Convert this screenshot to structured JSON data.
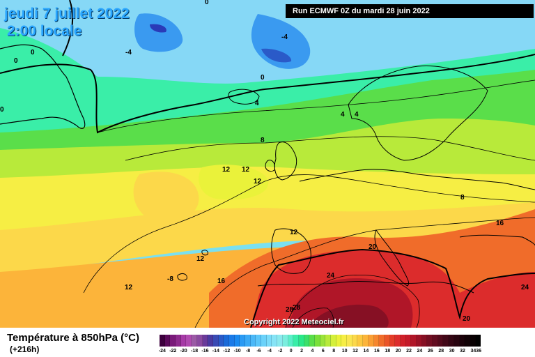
{
  "title": {
    "date": "jeudi 7 juillet 2022",
    "time": "2:00 locale"
  },
  "run_info": "Run ECMWF 0Z du mardi 28 juin 2022",
  "copyright": "Copyright 2022 Meteociel.fr",
  "legend": {
    "title": "Température à 850hPa (°C)",
    "subtitle": "(+216h)",
    "bins": [
      {
        "label": "-24",
        "color": "#3d003d"
      },
      {
        "label": "",
        "color": "#5a0a5a"
      },
      {
        "label": "-22",
        "color": "#7a1a7a"
      },
      {
        "label": "",
        "color": "#8e2a8e"
      },
      {
        "label": "-20",
        "color": "#a63aa6"
      },
      {
        "label": "",
        "color": "#b04ab0"
      },
      {
        "label": "-18",
        "color": "#9b5aa6"
      },
      {
        "label": "",
        "color": "#8a4aa0"
      },
      {
        "label": "-16",
        "color": "#6a3a9a"
      },
      {
        "label": "",
        "color": "#4a3aa0"
      },
      {
        "label": "-14",
        "color": "#3a4ab4"
      },
      {
        "label": "",
        "color": "#2a5ac8"
      },
      {
        "label": "-12",
        "color": "#1a6ad8"
      },
      {
        "label": "",
        "color": "#1a7ae8"
      },
      {
        "label": "-10",
        "color": "#1a8af0"
      },
      {
        "label": "",
        "color": "#2a9af4"
      },
      {
        "label": "-8",
        "color": "#3aaaf6"
      },
      {
        "label": "",
        "color": "#4ab8f8"
      },
      {
        "label": "-6",
        "color": "#5ac6fa"
      },
      {
        "label": "",
        "color": "#6ad2fa"
      },
      {
        "label": "-4",
        "color": "#7adcfa"
      },
      {
        "label": "",
        "color": "#86e4f6"
      },
      {
        "label": "-2",
        "color": "#8aeaee"
      },
      {
        "label": "",
        "color": "#7aeede"
      },
      {
        "label": "0",
        "color": "#5af0c8"
      },
      {
        "label": "",
        "color": "#3aeea8"
      },
      {
        "label": "2",
        "color": "#2ae888"
      },
      {
        "label": "",
        "color": "#3ae06a"
      },
      {
        "label": "4",
        "color": "#5ade4a"
      },
      {
        "label": "",
        "color": "#7ae03a"
      },
      {
        "label": "6",
        "color": "#9ae43a"
      },
      {
        "label": "",
        "color": "#b8ea3a"
      },
      {
        "label": "8",
        "color": "#d4f03a"
      },
      {
        "label": "",
        "color": "#eaf23a"
      },
      {
        "label": "10",
        "color": "#f6ee44"
      },
      {
        "label": "",
        "color": "#fae650"
      },
      {
        "label": "12",
        "color": "#fcd84a"
      },
      {
        "label": "",
        "color": "#fcc840"
      },
      {
        "label": "14",
        "color": "#fcb43a"
      },
      {
        "label": "",
        "color": "#fa9e34"
      },
      {
        "label": "16",
        "color": "#f6862e"
      },
      {
        "label": "",
        "color": "#f06c2a"
      },
      {
        "label": "18",
        "color": "#ea5428"
      },
      {
        "label": "",
        "color": "#e43c28"
      },
      {
        "label": "20",
        "color": "#dc2c2c"
      },
      {
        "label": "",
        "color": "#d0202a"
      },
      {
        "label": "22",
        "color": "#c41a2a"
      },
      {
        "label": "",
        "color": "#b01628"
      },
      {
        "label": "24",
        "color": "#9a1226"
      },
      {
        "label": "",
        "color": "#861024"
      },
      {
        "label": "26",
        "color": "#720e22"
      },
      {
        "label": "",
        "color": "#620c20"
      },
      {
        "label": "28",
        "color": "#520a1c"
      },
      {
        "label": "",
        "color": "#420818"
      },
      {
        "label": "30",
        "color": "#340614"
      },
      {
        "label": "",
        "color": "#280410"
      },
      {
        "label": "32",
        "color": "#1c020a"
      },
      {
        "label": "",
        "color": "#120206"
      },
      {
        "label": "34",
        "color": "#080002"
      },
      {
        "label": "36",
        "color": "#000000"
      }
    ]
  },
  "contour_labels": [
    "0",
    "0",
    "0",
    "0",
    "-4",
    "-4",
    "0",
    "4",
    "4",
    "4",
    "8",
    "12",
    "12",
    "12",
    "12",
    "12",
    "12",
    "-8",
    "16",
    "20",
    "24",
    "28",
    "28",
    "8",
    "16",
    "24",
    "20"
  ],
  "colors": {
    "cold": "#2aa6ff",
    "warm": "#dc2c2c",
    "ocean_base": "#7bd0f0"
  }
}
